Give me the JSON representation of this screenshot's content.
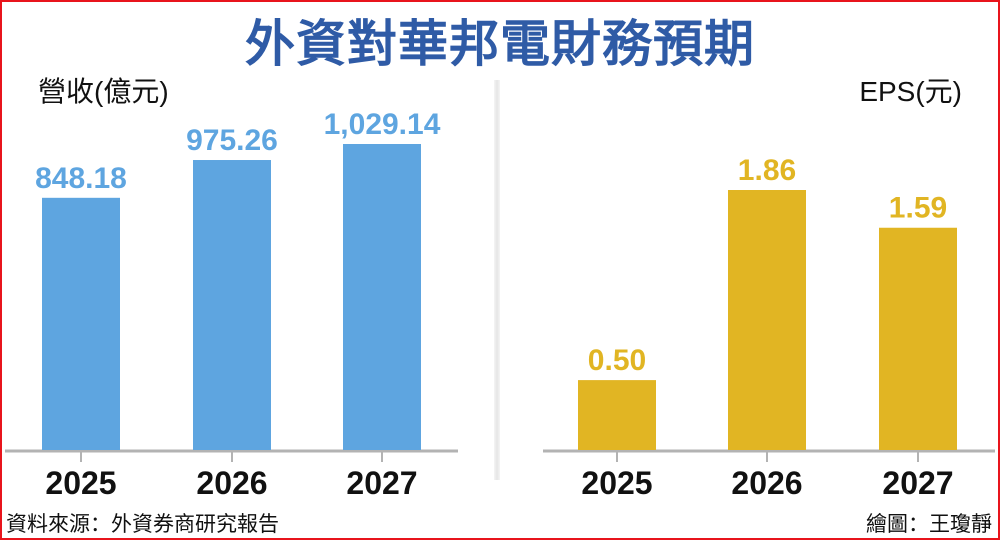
{
  "title": "外資對華邦電財務預期",
  "footer": {
    "source": "資料來源：外資券商研究報告",
    "credit": "繪圖：王瓊靜"
  },
  "chart_data": [
    {
      "type": "bar",
      "title": "營收(億元)",
      "ylabel": "營收(億元)",
      "categories": [
        "2025",
        "2026",
        "2027"
      ],
      "values": [
        848.18,
        975.26,
        1029.14
      ],
      "labels": [
        "848.18",
        "975.26",
        "1,029.14"
      ],
      "color": "#5ea5e0",
      "ylim": [
        0,
        1029.14
      ],
      "grid": false
    },
    {
      "type": "bar",
      "title": "EPS(元)",
      "ylabel": "EPS(元)",
      "categories": [
        "2025",
        "2026",
        "2027"
      ],
      "values": [
        0.5,
        1.86,
        1.59
      ],
      "labels": [
        "0.50",
        "1.86",
        "1.59"
      ],
      "color": "#e1b523",
      "ylim": [
        0,
        1.86
      ],
      "grid": false
    }
  ]
}
